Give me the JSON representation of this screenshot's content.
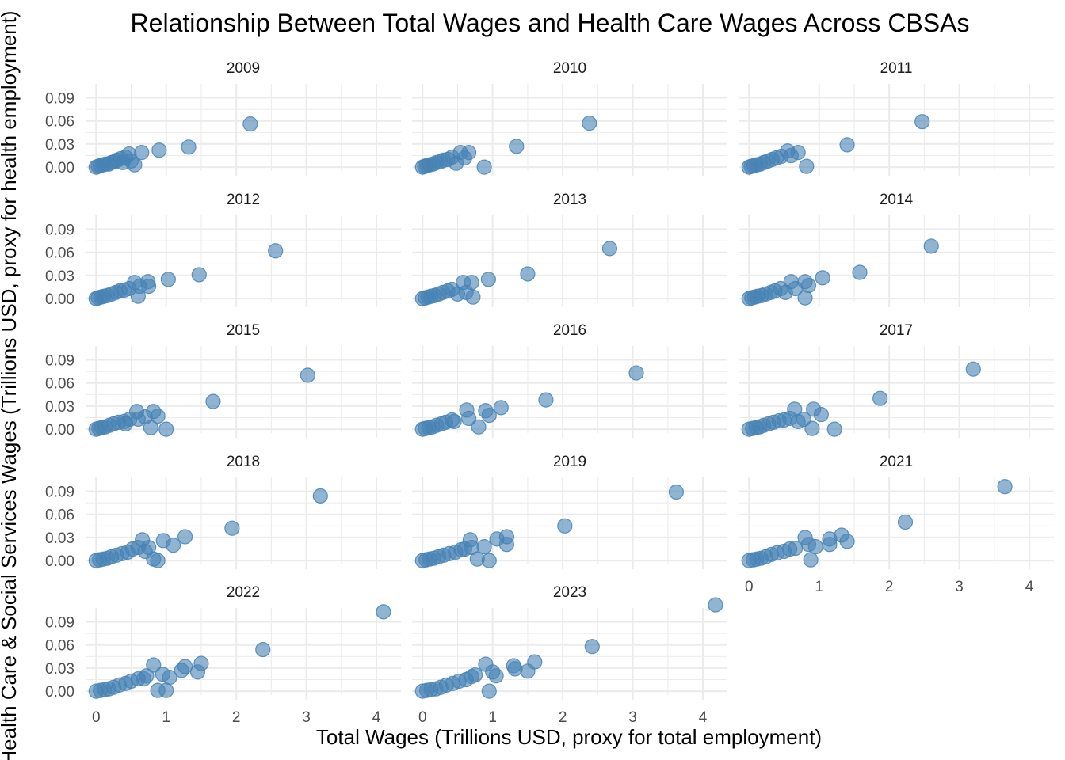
{
  "chart_data": {
    "type": "scatter",
    "title": "Relationship Between Total Wages and Health Care Wages Across CBSAs",
    "xlabel": "Total Wages (Trillions USD, proxy for total employment)",
    "ylabel": "Health Care & Social Services Wages (Trillions USD, proxy for health employment)",
    "xlim": [
      -0.15,
      4.35
    ],
    "ylim": [
      -0.005,
      0.108
    ],
    "x_ticks": [
      0,
      1,
      2,
      3,
      4
    ],
    "x_tick_labels": [
      "0",
      "1",
      "2",
      "3",
      "4"
    ],
    "y_ticks": [
      0.0,
      0.03,
      0.06,
      0.09
    ],
    "y_tick_labels": [
      "0.00",
      "0.03",
      "0.06",
      "0.09"
    ],
    "point_color": "#4682b4",
    "point_opacity": 0.6,
    "facets": [
      {
        "label": "2009",
        "points": [
          [
            0.0,
            0.0
          ],
          [
            0.03,
            0.001
          ],
          [
            0.06,
            0.002
          ],
          [
            0.1,
            0.003
          ],
          [
            0.14,
            0.004
          ],
          [
            0.18,
            0.004
          ],
          [
            0.22,
            0.006
          ],
          [
            0.26,
            0.007
          ],
          [
            0.3,
            0.009
          ],
          [
            0.35,
            0.011
          ],
          [
            0.38,
            0.006
          ],
          [
            0.42,
            0.013
          ],
          [
            0.47,
            0.017
          ],
          [
            0.5,
            0.008
          ],
          [
            0.55,
            0.003
          ],
          [
            0.65,
            0.019
          ],
          [
            0.9,
            0.022
          ],
          [
            1.32,
            0.026
          ],
          [
            2.2,
            0.056
          ]
        ]
      },
      {
        "label": "2010",
        "points": [
          [
            0.0,
            0.0
          ],
          [
            0.03,
            0.001
          ],
          [
            0.06,
            0.002
          ],
          [
            0.1,
            0.003
          ],
          [
            0.15,
            0.004
          ],
          [
            0.2,
            0.006
          ],
          [
            0.25,
            0.007
          ],
          [
            0.3,
            0.009
          ],
          [
            0.36,
            0.01
          ],
          [
            0.42,
            0.013
          ],
          [
            0.48,
            0.005
          ],
          [
            0.54,
            0.019
          ],
          [
            0.6,
            0.012
          ],
          [
            0.66,
            0.019
          ],
          [
            0.88,
            0.0
          ],
          [
            1.34,
            0.027
          ],
          [
            2.38,
            0.057
          ]
        ]
      },
      {
        "label": "2011",
        "points": [
          [
            0.0,
            0.0
          ],
          [
            0.03,
            0.001
          ],
          [
            0.07,
            0.002
          ],
          [
            0.11,
            0.003
          ],
          [
            0.16,
            0.004
          ],
          [
            0.21,
            0.006
          ],
          [
            0.27,
            0.008
          ],
          [
            0.33,
            0.01
          ],
          [
            0.39,
            0.012
          ],
          [
            0.46,
            0.014
          ],
          [
            0.55,
            0.021
          ],
          [
            0.6,
            0.015
          ],
          [
            0.7,
            0.019
          ],
          [
            0.82,
            0.001
          ],
          [
            1.4,
            0.029
          ],
          [
            2.47,
            0.059
          ]
        ]
      },
      {
        "label": "2012",
        "points": [
          [
            0.0,
            0.0
          ],
          [
            0.03,
            0.001
          ],
          [
            0.07,
            0.002
          ],
          [
            0.11,
            0.003
          ],
          [
            0.16,
            0.004
          ],
          [
            0.22,
            0.006
          ],
          [
            0.28,
            0.008
          ],
          [
            0.34,
            0.01
          ],
          [
            0.4,
            0.011
          ],
          [
            0.47,
            0.013
          ],
          [
            0.55,
            0.021
          ],
          [
            0.6,
            0.003
          ],
          [
            0.62,
            0.016
          ],
          [
            0.74,
            0.022
          ],
          [
            0.75,
            0.016
          ],
          [
            1.03,
            0.025
          ],
          [
            1.47,
            0.031
          ],
          [
            2.56,
            0.062
          ]
        ]
      },
      {
        "label": "2013",
        "points": [
          [
            0.0,
            0.0
          ],
          [
            0.04,
            0.001
          ],
          [
            0.08,
            0.002
          ],
          [
            0.12,
            0.003
          ],
          [
            0.17,
            0.004
          ],
          [
            0.23,
            0.006
          ],
          [
            0.29,
            0.008
          ],
          [
            0.36,
            0.01
          ],
          [
            0.42,
            0.012
          ],
          [
            0.5,
            0.006
          ],
          [
            0.58,
            0.021
          ],
          [
            0.62,
            0.008
          ],
          [
            0.7,
            0.021
          ],
          [
            0.72,
            0.002
          ],
          [
            0.94,
            0.025
          ],
          [
            1.5,
            0.032
          ],
          [
            2.67,
            0.065
          ]
        ]
      },
      {
        "label": "2014",
        "points": [
          [
            0.0,
            0.0
          ],
          [
            0.04,
            0.001
          ],
          [
            0.08,
            0.002
          ],
          [
            0.12,
            0.003
          ],
          [
            0.18,
            0.004
          ],
          [
            0.24,
            0.006
          ],
          [
            0.31,
            0.008
          ],
          [
            0.37,
            0.01
          ],
          [
            0.45,
            0.013
          ],
          [
            0.52,
            0.008
          ],
          [
            0.6,
            0.022
          ],
          [
            0.66,
            0.013
          ],
          [
            0.8,
            0.022
          ],
          [
            0.8,
            0.001
          ],
          [
            0.85,
            0.017
          ],
          [
            1.05,
            0.027
          ],
          [
            1.58,
            0.034
          ],
          [
            2.6,
            0.068
          ]
        ]
      },
      {
        "label": "2015",
        "points": [
          [
            0.0,
            0.0
          ],
          [
            0.04,
            0.001
          ],
          [
            0.08,
            0.002
          ],
          [
            0.13,
            0.003
          ],
          [
            0.19,
            0.005
          ],
          [
            0.25,
            0.007
          ],
          [
            0.32,
            0.009
          ],
          [
            0.4,
            0.01
          ],
          [
            0.42,
            0.007
          ],
          [
            0.48,
            0.013
          ],
          [
            0.58,
            0.023
          ],
          [
            0.6,
            0.013
          ],
          [
            0.7,
            0.016
          ],
          [
            0.78,
            0.002
          ],
          [
            0.82,
            0.023
          ],
          [
            0.88,
            0.017
          ],
          [
            1.0,
            0.0
          ],
          [
            1.67,
            0.036
          ],
          [
            3.02,
            0.07
          ]
        ]
      },
      {
        "label": "2016",
        "points": [
          [
            0.0,
            0.0
          ],
          [
            0.04,
            0.001
          ],
          [
            0.09,
            0.002
          ],
          [
            0.14,
            0.003
          ],
          [
            0.2,
            0.005
          ],
          [
            0.27,
            0.007
          ],
          [
            0.33,
            0.009
          ],
          [
            0.42,
            0.012
          ],
          [
            0.45,
            0.01
          ],
          [
            0.63,
            0.025
          ],
          [
            0.66,
            0.014
          ],
          [
            0.8,
            0.003
          ],
          [
            0.9,
            0.024
          ],
          [
            0.95,
            0.018
          ],
          [
            1.12,
            0.028
          ],
          [
            1.76,
            0.038
          ],
          [
            3.05,
            0.073
          ]
        ]
      },
      {
        "label": "2017",
        "points": [
          [
            0.0,
            0.0
          ],
          [
            0.05,
            0.001
          ],
          [
            0.1,
            0.002
          ],
          [
            0.15,
            0.003
          ],
          [
            0.21,
            0.005
          ],
          [
            0.28,
            0.007
          ],
          [
            0.35,
            0.009
          ],
          [
            0.43,
            0.011
          ],
          [
            0.5,
            0.012
          ],
          [
            0.58,
            0.014
          ],
          [
            0.65,
            0.026
          ],
          [
            0.7,
            0.01
          ],
          [
            0.78,
            0.013
          ],
          [
            0.9,
            0.001
          ],
          [
            0.92,
            0.026
          ],
          [
            1.03,
            0.019
          ],
          [
            1.22,
            0.0
          ],
          [
            1.87,
            0.04
          ],
          [
            3.2,
            0.078
          ]
        ]
      },
      {
        "label": "2018",
        "points": [
          [
            0.0,
            0.0
          ],
          [
            0.05,
            0.001
          ],
          [
            0.1,
            0.002
          ],
          [
            0.16,
            0.003
          ],
          [
            0.22,
            0.005
          ],
          [
            0.29,
            0.007
          ],
          [
            0.37,
            0.009
          ],
          [
            0.45,
            0.011
          ],
          [
            0.52,
            0.015
          ],
          [
            0.6,
            0.017
          ],
          [
            0.66,
            0.027
          ],
          [
            0.7,
            0.012
          ],
          [
            0.75,
            0.017
          ],
          [
            0.82,
            0.002
          ],
          [
            0.88,
            0.0
          ],
          [
            0.96,
            0.026
          ],
          [
            1.1,
            0.02
          ],
          [
            1.27,
            0.031
          ],
          [
            1.94,
            0.042
          ],
          [
            3.2,
            0.084
          ]
        ]
      },
      {
        "label": "2019",
        "points": [
          [
            0.0,
            0.0
          ],
          [
            0.05,
            0.001
          ],
          [
            0.1,
            0.002
          ],
          [
            0.16,
            0.003
          ],
          [
            0.23,
            0.005
          ],
          [
            0.3,
            0.007
          ],
          [
            0.38,
            0.009
          ],
          [
            0.47,
            0.011
          ],
          [
            0.55,
            0.014
          ],
          [
            0.6,
            0.015
          ],
          [
            0.68,
            0.027
          ],
          [
            0.7,
            0.017
          ],
          [
            0.78,
            0.002
          ],
          [
            0.88,
            0.018
          ],
          [
            0.95,
            0.0
          ],
          [
            1.06,
            0.028
          ],
          [
            1.2,
            0.031
          ],
          [
            1.2,
            0.021
          ],
          [
            2.03,
            0.045
          ],
          [
            3.62,
            0.089
          ]
        ]
      },
      {
        "label": "2021",
        "points": [
          [
            0.0,
            0.0
          ],
          [
            0.06,
            0.001
          ],
          [
            0.11,
            0.002
          ],
          [
            0.17,
            0.003
          ],
          [
            0.24,
            0.005
          ],
          [
            0.32,
            0.008
          ],
          [
            0.4,
            0.01
          ],
          [
            0.5,
            0.012
          ],
          [
            0.58,
            0.015
          ],
          [
            0.66,
            0.016
          ],
          [
            0.8,
            0.03
          ],
          [
            0.85,
            0.021
          ],
          [
            0.88,
            0.001
          ],
          [
            0.95,
            0.018
          ],
          [
            1.15,
            0.028
          ],
          [
            1.15,
            0.021
          ],
          [
            1.32,
            0.033
          ],
          [
            1.4,
            0.025
          ],
          [
            2.23,
            0.05
          ],
          [
            3.65,
            0.096
          ]
        ]
      },
      {
        "label": "2022",
        "points": [
          [
            0.0,
            0.0
          ],
          [
            0.06,
            0.001
          ],
          [
            0.12,
            0.002
          ],
          [
            0.18,
            0.003
          ],
          [
            0.25,
            0.005
          ],
          [
            0.33,
            0.008
          ],
          [
            0.42,
            0.01
          ],
          [
            0.5,
            0.013
          ],
          [
            0.6,
            0.016
          ],
          [
            0.68,
            0.016
          ],
          [
            0.72,
            0.02
          ],
          [
            0.82,
            0.034
          ],
          [
            0.88,
            0.001
          ],
          [
            0.95,
            0.022
          ],
          [
            1.0,
            0.001
          ],
          [
            1.05,
            0.018
          ],
          [
            1.22,
            0.027
          ],
          [
            1.27,
            0.032
          ],
          [
            1.45,
            0.025
          ],
          [
            1.5,
            0.036
          ],
          [
            2.38,
            0.054
          ],
          [
            4.1,
            0.103
          ]
        ]
      },
      {
        "label": "2023",
        "points": [
          [
            0.0,
            0.0
          ],
          [
            0.06,
            0.001
          ],
          [
            0.12,
            0.002
          ],
          [
            0.19,
            0.003
          ],
          [
            0.26,
            0.005
          ],
          [
            0.34,
            0.008
          ],
          [
            0.43,
            0.01
          ],
          [
            0.52,
            0.013
          ],
          [
            0.62,
            0.015
          ],
          [
            0.7,
            0.019
          ],
          [
            0.75,
            0.021
          ],
          [
            0.9,
            0.035
          ],
          [
            0.95,
            0.0
          ],
          [
            1.0,
            0.025
          ],
          [
            1.05,
            0.02
          ],
          [
            1.3,
            0.033
          ],
          [
            1.32,
            0.029
          ],
          [
            1.5,
            0.026
          ],
          [
            1.6,
            0.038
          ],
          [
            2.42,
            0.058
          ],
          [
            4.18,
            0.112
          ]
        ]
      }
    ]
  }
}
